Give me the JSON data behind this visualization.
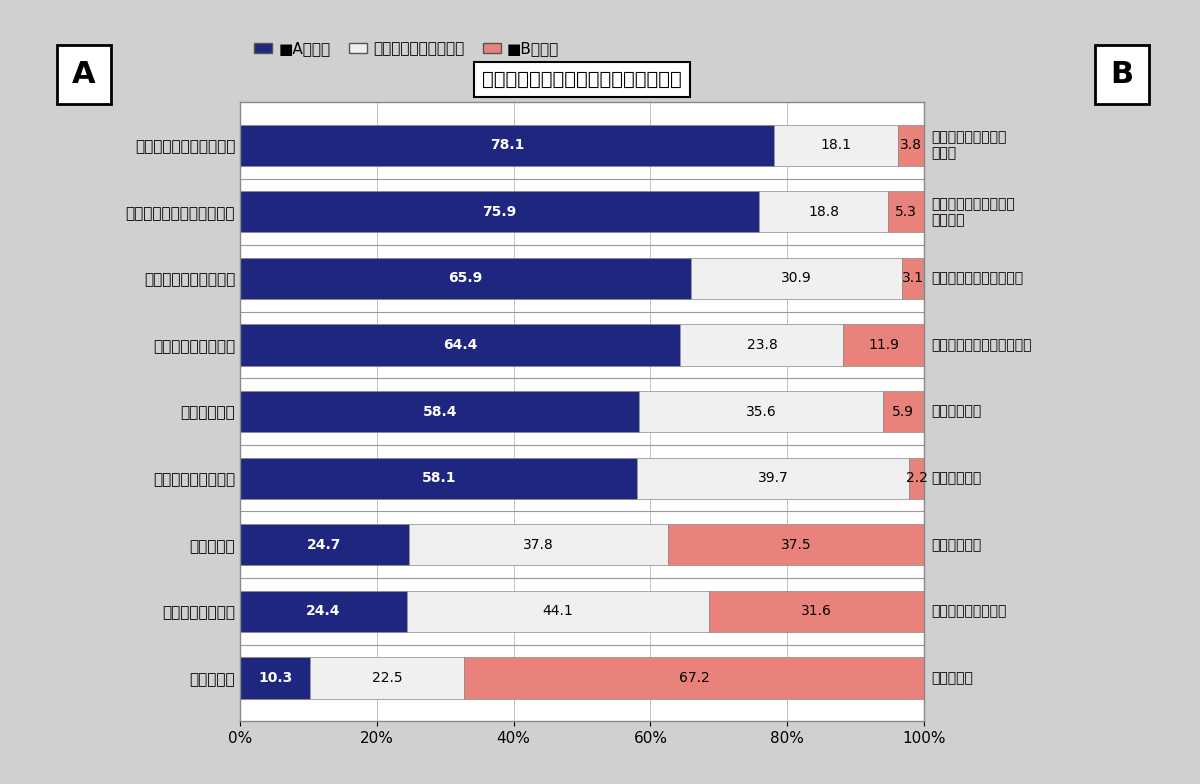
{
  "title": "日本企業に対して抱いているイメージ",
  "label_A": "A",
  "label_B": "B",
  "legend_A": "■Aに近い",
  "legend_N": "口どちらともいえない",
  "legend_B": "■Bに近い",
  "categories_left": [
    "社員研修が充実している",
    "高い日本語力が求められる",
    "福利厚生が整っている",
    "年功序列の賃金制度",
    "技術力が高い",
    "経営が安定している",
    "休暇が多い",
    "昇進の機会が多い",
    "短時間労働"
  ],
  "categories_right": [
    "社員研修が充実して\nいない",
    "日本語力はあまり求め\nられない",
    "福利厚生が整っていない",
    "能力・成果による賃金制度",
    "技術力が低い",
    "経営が不安定",
    "休暇が少ない",
    "昇進の機会が少ない",
    "長時間労働"
  ],
  "data": [
    [
      78.1,
      18.1,
      3.8
    ],
    [
      75.9,
      18.8,
      5.3
    ],
    [
      65.9,
      30.9,
      3.1
    ],
    [
      64.4,
      23.8,
      11.9
    ],
    [
      58.4,
      35.6,
      5.9
    ],
    [
      58.1,
      39.7,
      2.2
    ],
    [
      24.7,
      37.8,
      37.5
    ],
    [
      24.4,
      44.1,
      31.6
    ],
    [
      10.3,
      22.5,
      67.2
    ]
  ],
  "color_A": "#1f2680",
  "color_neutral": "#f0f0f0",
  "color_B": "#e8827a",
  "bar_edge_color": "#888888",
  "background_color": "#d0d0d0",
  "plot_bg_color": "#ffffff",
  "xlabel_ticks": [
    "0%",
    "20%",
    "40%",
    "60%",
    "80%",
    "100%"
  ],
  "xlabel_values": [
    0,
    20,
    40,
    60,
    80,
    100
  ]
}
